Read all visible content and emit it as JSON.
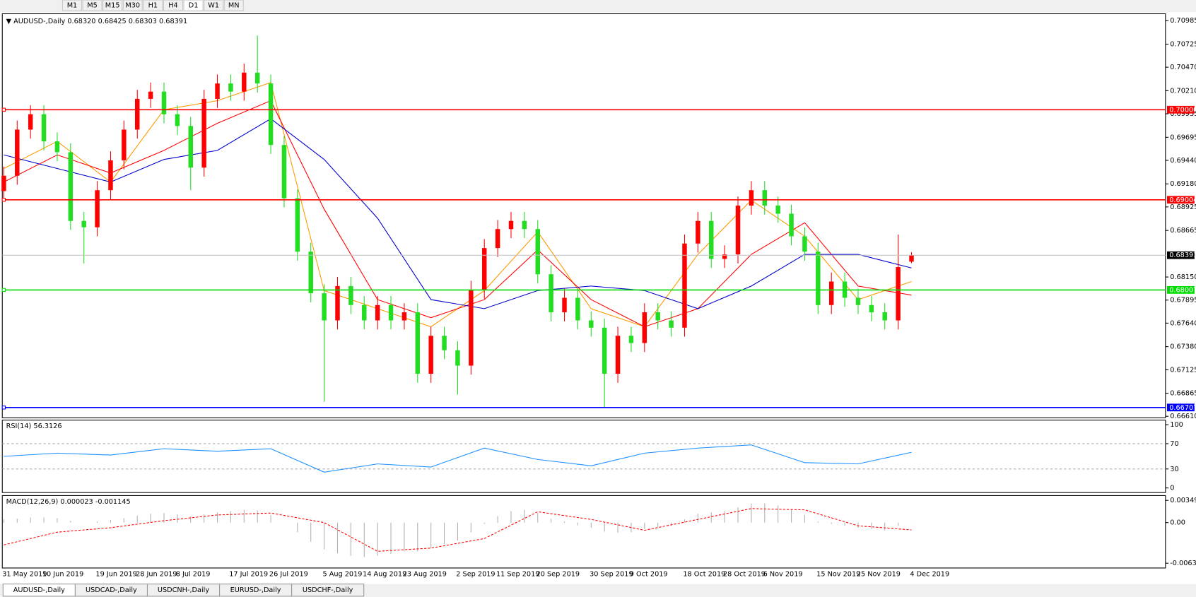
{
  "toolbar": {
    "timeframes": [
      "M1",
      "M5",
      "M15",
      "M30",
      "H1",
      "H4",
      "D1",
      "W1",
      "MN"
    ]
  },
  "tabs": [
    "AUDUSD-,Daily",
    "USDCAD-,Daily",
    "USDCNH-,Daily",
    "EURUSD-,Daily",
    "USDCHF-,Daily"
  ],
  "chart_data": [
    {
      "type": "candlestick",
      "title": "AUDUSD-,Daily",
      "quote": [
        "0.68320",
        "0.68425",
        "0.68303",
        "0.68391"
      ],
      "categories": [
        "31 May 2019",
        null,
        null,
        "10 Jun 2019",
        null,
        null,
        null,
        "19 Jun 2019",
        null,
        null,
        "28 Jun 2019",
        null,
        null,
        "8 Jul 2019",
        null,
        null,
        null,
        "17 Jul 2019",
        null,
        null,
        "26 Jul 2019",
        null,
        null,
        null,
        "5 Aug 2019",
        null,
        null,
        "14 Aug 2019",
        null,
        null,
        "23 Aug 2019",
        null,
        null,
        null,
        "2 Sep 2019",
        null,
        null,
        "11 Sep 2019",
        null,
        null,
        "20 Sep 2019",
        null,
        null,
        null,
        "30 Sep 2019",
        null,
        null,
        "9 Oct 2019",
        null,
        null,
        null,
        "18 Oct 2019",
        null,
        null,
        "28 Oct 2019",
        null,
        null,
        "6 Nov 2019",
        null,
        null,
        null,
        "15 Nov 2019",
        null,
        null,
        "25 Nov 2019",
        null,
        null,
        null,
        "4 Dec 2019"
      ],
      "open": [
        0.691,
        0.6927,
        0.6978,
        0.6995,
        0.6965,
        0.6953,
        0.6877,
        0.687,
        0.6911,
        0.6944,
        0.6978,
        0.7012,
        0.702,
        0.6995,
        0.6982,
        0.6936,
        0.7012,
        0.7029,
        0.702,
        0.7041,
        0.7029,
        0.6961,
        0.6902,
        0.6843,
        0.6797,
        0.6767,
        0.6805,
        0.6784,
        0.6767,
        0.6784,
        0.6767,
        0.6776,
        0.6708,
        0.675,
        0.6734,
        0.6717,
        0.6801,
        0.6847,
        0.6868,
        0.6877,
        0.6868,
        0.6818,
        0.6776,
        0.6792,
        0.6767,
        0.6759,
        0.6708,
        0.675,
        0.6742,
        0.6776,
        0.6767,
        0.6759,
        0.6852,
        0.6877,
        0.6835,
        0.684,
        0.6894,
        0.6911,
        0.6894,
        0.6885,
        0.686,
        0.6843,
        0.6784,
        0.681,
        0.6792,
        0.6784,
        0.6776,
        0.6767,
        0.6832
      ],
      "high": [
        0.6937,
        0.6988,
        0.7005,
        0.7005,
        0.6975,
        0.6963,
        0.6887,
        0.6921,
        0.6954,
        0.6988,
        0.7022,
        0.703,
        0.703,
        0.7005,
        0.6992,
        0.7022,
        0.7039,
        0.7039,
        0.7051,
        0.7082,
        0.7039,
        0.6971,
        0.6912,
        0.6853,
        0.6807,
        0.6815,
        0.6815,
        0.6794,
        0.6794,
        0.6794,
        0.6786,
        0.6786,
        0.676,
        0.676,
        0.6744,
        0.6811,
        0.6857,
        0.6878,
        0.6887,
        0.6887,
        0.6878,
        0.6828,
        0.6802,
        0.6802,
        0.6777,
        0.6769,
        0.676,
        0.676,
        0.6786,
        0.6786,
        0.6777,
        0.6862,
        0.6887,
        0.6887,
        0.685,
        0.6904,
        0.6921,
        0.6921,
        0.6904,
        0.6895,
        0.687,
        0.6853,
        0.682,
        0.682,
        0.6802,
        0.6794,
        0.6786,
        0.6862,
        0.68425
      ],
      "low": [
        0.69,
        0.6917,
        0.6968,
        0.6955,
        0.6943,
        0.6867,
        0.683,
        0.686,
        0.6901,
        0.6934,
        0.6968,
        0.7002,
        0.6985,
        0.6972,
        0.6911,
        0.6926,
        0.7002,
        0.701,
        0.701,
        0.7019,
        0.6951,
        0.6892,
        0.6833,
        0.6787,
        0.6677,
        0.6757,
        0.6774,
        0.6757,
        0.6757,
        0.6757,
        0.6757,
        0.6698,
        0.6698,
        0.6724,
        0.6685,
        0.6707,
        0.6791,
        0.6837,
        0.6858,
        0.6858,
        0.6808,
        0.6766,
        0.6766,
        0.6757,
        0.6749,
        0.667,
        0.6698,
        0.6732,
        0.6732,
        0.6757,
        0.6749,
        0.6749,
        0.6842,
        0.6825,
        0.6825,
        0.683,
        0.6884,
        0.6884,
        0.6875,
        0.685,
        0.6833,
        0.6774,
        0.6774,
        0.6782,
        0.6774,
        0.6766,
        0.6757,
        0.6757,
        0.68303
      ],
      "close": [
        0.6927,
        0.6978,
        0.6995,
        0.6965,
        0.6953,
        0.6877,
        0.687,
        0.6911,
        0.6944,
        0.6978,
        0.7012,
        0.702,
        0.6995,
        0.6982,
        0.6936,
        0.7012,
        0.7029,
        0.702,
        0.7041,
        0.7029,
        0.6961,
        0.6902,
        0.6843,
        0.6797,
        0.6767,
        0.6805,
        0.6784,
        0.6767,
        0.6784,
        0.6767,
        0.6776,
        0.6708,
        0.675,
        0.6734,
        0.6717,
        0.6801,
        0.6847,
        0.6868,
        0.6877,
        0.6868,
        0.6818,
        0.6776,
        0.6792,
        0.6767,
        0.6759,
        0.6708,
        0.675,
        0.6742,
        0.6776,
        0.6767,
        0.6759,
        0.6852,
        0.6877,
        0.6835,
        0.684,
        0.6894,
        0.6911,
        0.6894,
        0.6885,
        0.686,
        0.6843,
        0.6784,
        0.681,
        0.6792,
        0.6784,
        0.6776,
        0.6767,
        0.6826,
        0.68391
      ],
      "up_color": "#ff0000",
      "down_color": "#22dd22",
      "lines": [
        {
          "color": "#ff9900",
          "x": [
            0,
            4,
            8,
            12,
            16,
            20,
            24,
            28,
            32,
            36,
            40,
            44,
            48,
            52,
            56,
            60,
            64,
            68
          ],
          "values": [
            0.6935,
            0.6965,
            0.692,
            0.7,
            0.701,
            0.703,
            0.68,
            0.678,
            0.676,
            0.68,
            0.6865,
            0.678,
            0.676,
            0.684,
            0.69,
            0.686,
            0.679,
            0.681
          ]
        },
        {
          "color": "#ff0000",
          "x": [
            0,
            4,
            8,
            12,
            16,
            20,
            24,
            28,
            32,
            36,
            40,
            44,
            48,
            52,
            56,
            60,
            64,
            68
          ],
          "values": [
            0.692,
            0.695,
            0.693,
            0.6955,
            0.6985,
            0.701,
            0.689,
            0.679,
            0.677,
            0.679,
            0.6845,
            0.679,
            0.676,
            0.678,
            0.684,
            0.6875,
            0.6805,
            0.6795
          ]
        },
        {
          "color": "#0000cc",
          "x": [
            0,
            4,
            8,
            12,
            16,
            20,
            24,
            28,
            32,
            36,
            40,
            44,
            48,
            52,
            56,
            60,
            64,
            68
          ],
          "values": [
            0.695,
            0.6935,
            0.692,
            0.6945,
            0.6955,
            0.699,
            0.6945,
            0.688,
            0.679,
            0.678,
            0.68,
            0.6805,
            0.68,
            0.678,
            0.6805,
            0.684,
            0.684,
            0.6825
          ]
        }
      ],
      "ylim": [
        0.66593,
        0.71061
      ],
      "yticks": [
        {
          "value": 0.70985,
          "label": "0.70985"
        },
        {
          "value": 0.70725,
          "label": "0.70725"
        },
        {
          "value": 0.7047,
          "label": "0.70470"
        },
        {
          "value": 0.7021,
          "label": "0.70210"
        },
        {
          "value": 0.69955,
          "label": "0.69955"
        },
        {
          "value": 0.69695,
          "label": "0.69695"
        },
        {
          "value": 0.6944,
          "label": "0.69440"
        },
        {
          "value": 0.6918,
          "label": "0.69180"
        },
        {
          "value": 0.68925,
          "label": "0.68925"
        },
        {
          "value": 0.68665,
          "label": "0.68665"
        },
        {
          "value": 0.6815,
          "label": "0.68150"
        },
        {
          "value": 0.67895,
          "label": "0.67895"
        },
        {
          "value": 0.6764,
          "label": "0.67640"
        },
        {
          "value": 0.6738,
          "label": "0.67380"
        },
        {
          "value": 0.67125,
          "label": "0.67125"
        },
        {
          "value": 0.66865,
          "label": "0.66865"
        },
        {
          "value": 0.6661,
          "label": "0.66610"
        }
      ],
      "levels": [
        {
          "value": 0.7,
          "label": "0.70000",
          "color": "#ff0000"
        },
        {
          "value": 0.69004,
          "label": "0.69004",
          "color": "#ff0000"
        },
        {
          "value": 0.68007,
          "label": "0.68007",
          "color": "#00dd00"
        },
        {
          "value": 0.66707,
          "label": "0.66707",
          "color": "#0000ff"
        }
      ],
      "last_price": {
        "value": 0.68391,
        "label": "0.68391"
      }
    },
    {
      "type": "line",
      "title": "RSI(14)",
      "x": [
        0,
        4,
        8,
        12,
        16,
        20,
        24,
        28,
        32,
        36,
        40,
        44,
        48,
        52,
        56,
        60,
        64,
        68
      ],
      "values": [
        50,
        55,
        52,
        62,
        58,
        62,
        25,
        38,
        33,
        63,
        45,
        35,
        55,
        63,
        68,
        40,
        38,
        56.3126
      ],
      "color": "#1e90ff",
      "ylim": [
        0,
        100
      ],
      "yticks": [
        0,
        30,
        70,
        100
      ]
    },
    {
      "type": "macd",
      "title": "MACD(12,26,9)",
      "histogram": [
        0.0005,
        0.0006,
        0.0008,
        0.0008,
        0.0007,
        0.0003,
        0.0,
        0.0002,
        0.0004,
        0.0007,
        0.0011,
        0.0014,
        0.0015,
        0.0013,
        0.001,
        0.0013,
        0.0016,
        0.0018,
        0.002,
        0.0019,
        0.0012,
        0.0,
        -0.0015,
        -0.003,
        -0.0042,
        -0.0048,
        -0.0052,
        -0.0054,
        -0.0052,
        -0.0049,
        -0.0045,
        -0.0045,
        -0.004,
        -0.0034,
        -0.0028,
        -0.0015,
        -0.0002,
        0.001,
        0.0018,
        0.002,
        0.0015,
        0.0006,
        0.0002,
        -0.0004,
        -0.0008,
        -0.0014,
        -0.0016,
        -0.0015,
        -0.001,
        -0.0007,
        -0.0005,
        0.0005,
        0.0014,
        0.0016,
        0.0018,
        0.0024,
        0.003,
        0.003,
        0.0027,
        0.002,
        0.0012,
        0.0002,
        -0.0002,
        -0.0005,
        -0.0008,
        -0.001,
        -0.0012,
        -0.0005,
        2.3e-05
      ],
      "signal_x": [
        0,
        4,
        8,
        12,
        16,
        20,
        24,
        28,
        32,
        36,
        40,
        44,
        48,
        52,
        56,
        60,
        64,
        68
      ],
      "signal": [
        -0.0035,
        -0.0015,
        -0.0008,
        0.0003,
        0.0012,
        0.0015,
        0.0,
        -0.0045,
        -0.004,
        -0.0025,
        0.0017,
        0.0005,
        -0.0012,
        0.0005,
        0.0022,
        0.002,
        -0.0005,
        -0.001145
      ],
      "hist_color": "#b0b0b0",
      "signal_color": "#ff0000",
      "ylim": [
        -0.00712,
        0.00424
      ],
      "yticks": [
        {
          "value": 0.00349,
          "label": "0.00349"
        },
        {
          "value": 0,
          "label": "0.00"
        },
        {
          "value": -0.00637,
          "label": "-0.00637"
        }
      ]
    }
  ]
}
